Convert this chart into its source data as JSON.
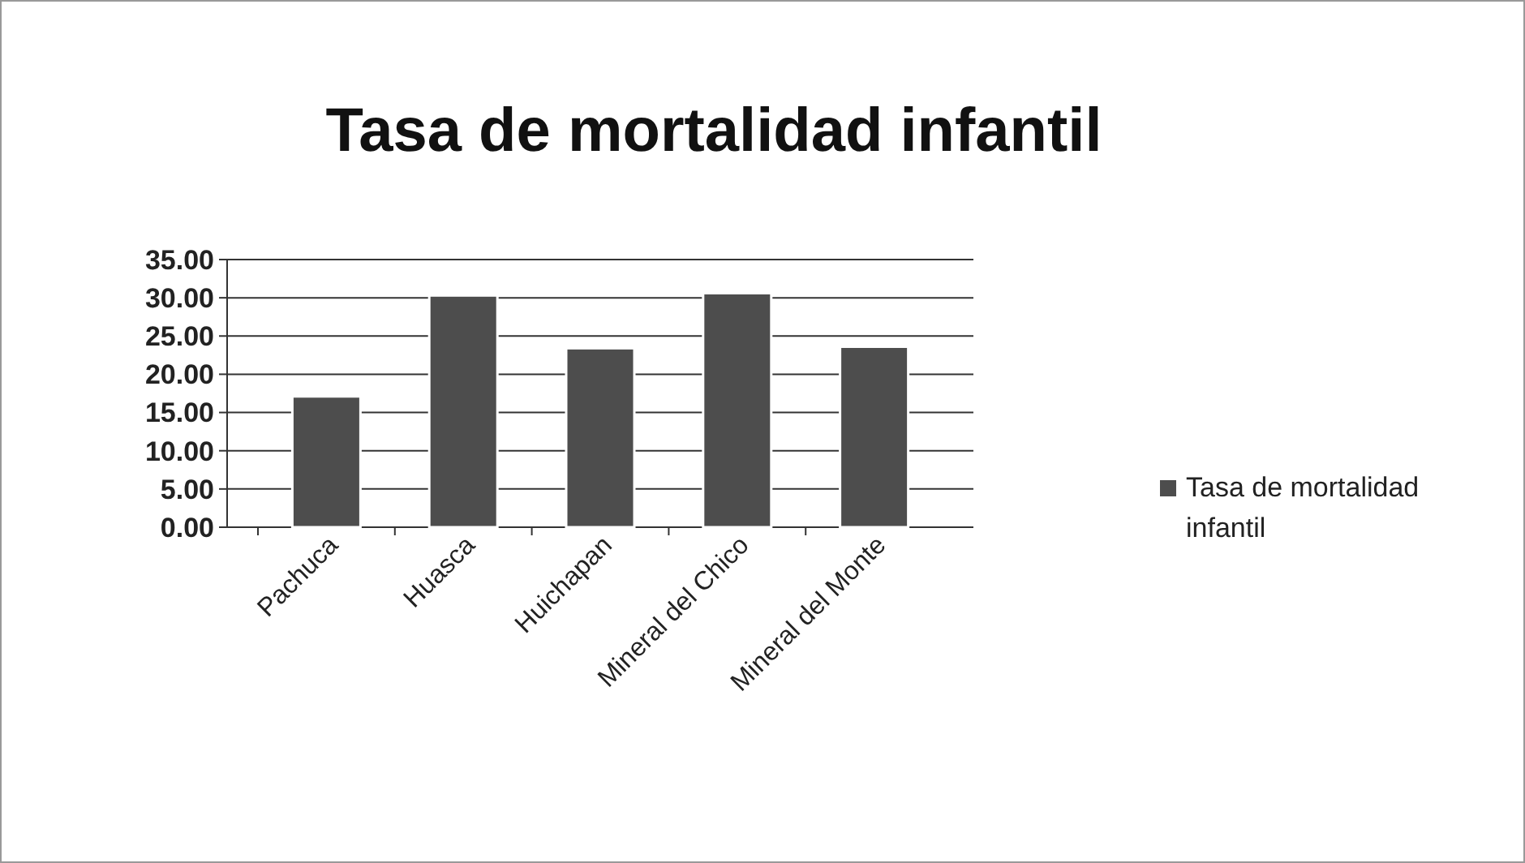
{
  "chart_data": {
    "type": "bar",
    "title": "Tasa de mortalidad infantil",
    "categories": [
      "Pachuca",
      "Huasca",
      "Huichapan",
      "Mineral del Chico",
      "Mineral del Monte"
    ],
    "series": [
      {
        "name": "Tasa de mortalidad infantil",
        "color": "#4d4d4d",
        "values": [
          17.1,
          30.3,
          23.4,
          30.6,
          23.6
        ]
      }
    ],
    "ylim": [
      0,
      35
    ],
    "yticks": [
      {
        "value": 0,
        "label": "0.00"
      },
      {
        "value": 5,
        "label": "5.00"
      },
      {
        "value": 10,
        "label": "10.00"
      },
      {
        "value": 15,
        "label": "15.00"
      },
      {
        "value": 20,
        "label": "20.00"
      },
      {
        "value": 25,
        "label": "25.00"
      },
      {
        "value": 30,
        "label": "30.00"
      },
      {
        "value": 35,
        "label": "35.00"
      }
    ],
    "grid": "y",
    "legend": "right"
  }
}
